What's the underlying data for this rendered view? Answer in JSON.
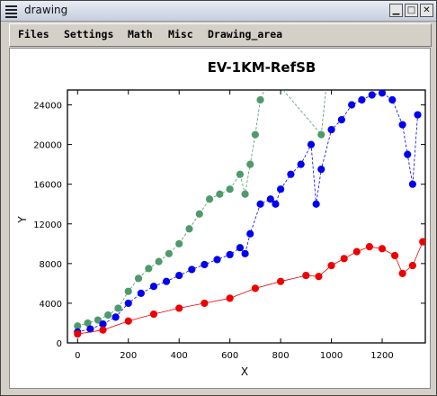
{
  "window": {
    "title": "drawing"
  },
  "menubar": {
    "items": [
      "Files",
      "Settings",
      "Math",
      "Misc",
      "Drawing_area"
    ]
  },
  "chart_data": {
    "type": "scatter",
    "title": "EV-1KM-RefSB",
    "xlabel": "X",
    "ylabel": "Y",
    "xlim": [
      -40,
      1370
    ],
    "ylim": [
      0,
      25500
    ],
    "xticks": [
      0,
      200,
      400,
      600,
      800,
      1000,
      1200
    ],
    "yticks": [
      0,
      4000,
      8000,
      12000,
      16000,
      20000,
      24000
    ],
    "grid": false,
    "series": [
      {
        "color": "#4f9a6a",
        "marker": "circle",
        "line": "dashed",
        "points": [
          [
            0,
            1700
          ],
          [
            40,
            2000
          ],
          [
            80,
            2300
          ],
          [
            120,
            2800
          ],
          [
            160,
            3500
          ],
          [
            200,
            5200
          ],
          [
            240,
            6500
          ],
          [
            280,
            7500
          ],
          [
            320,
            8200
          ],
          [
            360,
            9000
          ],
          [
            400,
            10000
          ],
          [
            440,
            11500
          ],
          [
            480,
            13000
          ],
          [
            520,
            14500
          ],
          [
            560,
            15000
          ],
          [
            600,
            15500
          ],
          [
            640,
            17000
          ],
          [
            660,
            15000
          ],
          [
            680,
            18000
          ],
          [
            700,
            21000
          ],
          [
            720,
            24500
          ],
          [
            760,
            27000
          ],
          [
            960,
            21000
          ],
          [
            980,
            26000
          ]
        ]
      },
      {
        "color": "#0000ee",
        "marker": "circle",
        "line": "dashed",
        "points": [
          [
            0,
            1100
          ],
          [
            50,
            1400
          ],
          [
            100,
            1900
          ],
          [
            150,
            2600
          ],
          [
            200,
            4000
          ],
          [
            250,
            5000
          ],
          [
            300,
            5700
          ],
          [
            350,
            6200
          ],
          [
            400,
            6800
          ],
          [
            450,
            7400
          ],
          [
            500,
            7900
          ],
          [
            550,
            8400
          ],
          [
            600,
            8900
          ],
          [
            640,
            9600
          ],
          [
            660,
            9000
          ],
          [
            680,
            11000
          ],
          [
            720,
            14000
          ],
          [
            760,
            14500
          ],
          [
            780,
            14000
          ],
          [
            800,
            15500
          ],
          [
            840,
            17000
          ],
          [
            880,
            18000
          ],
          [
            920,
            20000
          ],
          [
            940,
            14000
          ],
          [
            960,
            17500
          ],
          [
            1000,
            21500
          ],
          [
            1040,
            22500
          ],
          [
            1080,
            24000
          ],
          [
            1120,
            24500
          ],
          [
            1160,
            25000
          ],
          [
            1200,
            25200
          ],
          [
            1240,
            24500
          ],
          [
            1280,
            22000
          ],
          [
            1300,
            19000
          ],
          [
            1320,
            16000
          ],
          [
            1340,
            23000
          ]
        ]
      },
      {
        "color": "#ee0000",
        "marker": "circle",
        "line": "none",
        "points": [
          [
            0,
            900
          ],
          [
            100,
            1300
          ],
          [
            200,
            2200
          ],
          [
            300,
            2900
          ],
          [
            400,
            3500
          ],
          [
            500,
            4000
          ],
          [
            600,
            4500
          ],
          [
            700,
            5500
          ],
          [
            800,
            6200
          ],
          [
            900,
            6800
          ],
          [
            950,
            6700
          ],
          [
            1000,
            7800
          ],
          [
            1050,
            8500
          ],
          [
            1100,
            9200
          ],
          [
            1150,
            9700
          ],
          [
            1200,
            9500
          ],
          [
            1250,
            8800
          ],
          [
            1280,
            7000
          ],
          [
            1320,
            7800
          ],
          [
            1360,
            10200
          ]
        ]
      }
    ]
  }
}
